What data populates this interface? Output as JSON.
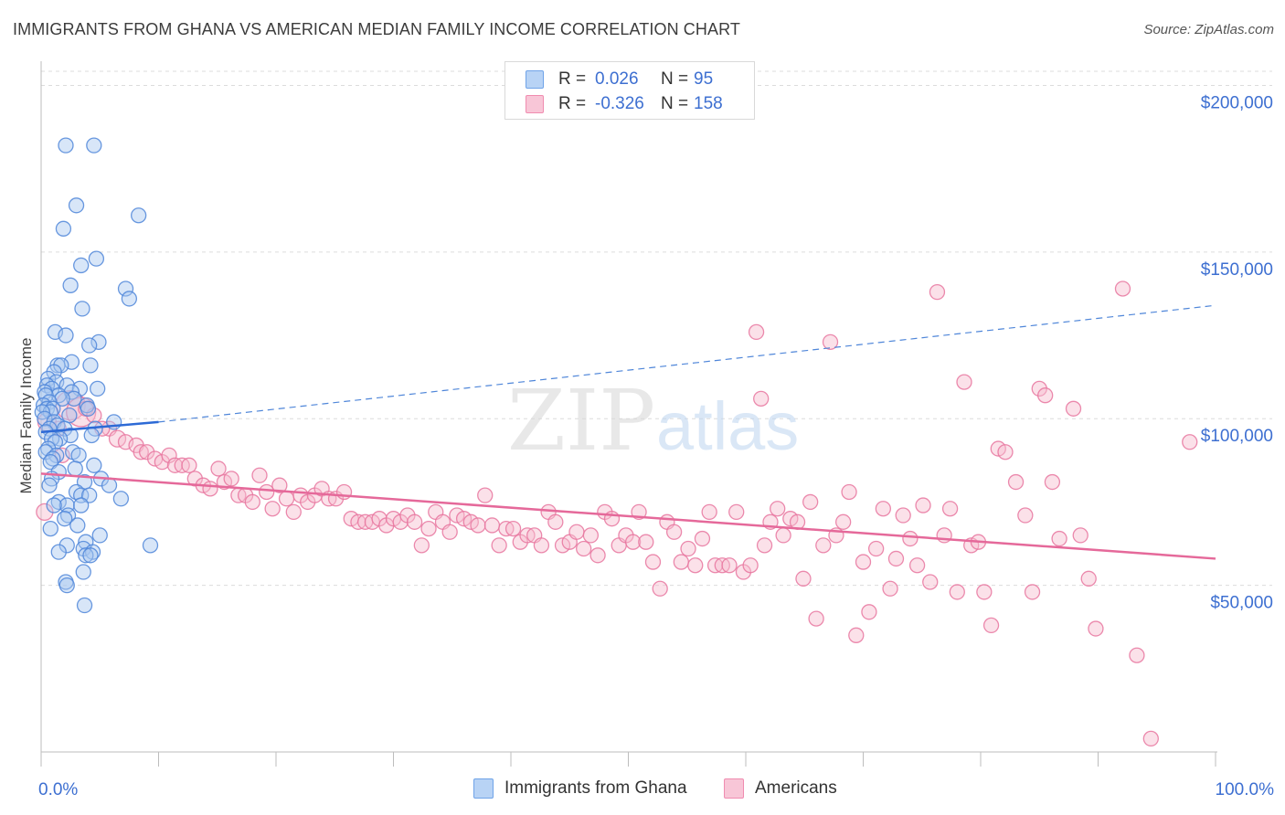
{
  "header": {
    "title": "IMMIGRANTS FROM GHANA VS AMERICAN MEDIAN FAMILY INCOME CORRELATION CHART",
    "source": "Source: ZipAtlas.com"
  },
  "watermark": {
    "part1": "ZIP",
    "part2": "atlas"
  },
  "legend_top": [
    {
      "r_label": "R =",
      "r_value": "0.026",
      "n_label": "N =",
      "n_value": "95",
      "color": "#6fa3e8",
      "fill": "#b8d3f5"
    },
    {
      "r_label": "R =",
      "r_value": "-0.326",
      "n_label": "N =",
      "n_value": "158",
      "color": "#f08cb0",
      "fill": "#f8c6d7"
    }
  ],
  "legend_bottom": [
    {
      "label": "Immigrants from Ghana",
      "color": "#6fa3e8",
      "fill": "#b8d3f5"
    },
    {
      "label": "Americans",
      "color": "#f08cb0",
      "fill": "#f8c6d7"
    }
  ],
  "chart_data": {
    "type": "scatter",
    "title": "IMMIGRANTS FROM GHANA VS AMERICAN MEDIAN FAMILY INCOME CORRELATION CHART",
    "xlabel": "",
    "ylabel": "Median Family Income",
    "xlim": [
      0,
      100
    ],
    "ylim": [
      0,
      210000
    ],
    "x_tick_labels": {
      "left": "0.0%",
      "right": "100.0%"
    },
    "y_ticks": [
      {
        "value": 50000,
        "label": "$50,000"
      },
      {
        "value": 100000,
        "label": "$100,000"
      },
      {
        "value": 150000,
        "label": "$150,000"
      },
      {
        "value": 200000,
        "label": "$200,000"
      }
    ],
    "grid": "horizontal dashed",
    "legend": "top-center and bottom",
    "series": [
      {
        "name": "Immigrants from Ghana",
        "color": "#4f86d9",
        "fill": "#a9c8f0",
        "trend": {
          "x": [
            0,
            10
          ],
          "y": [
            96000,
            99000
          ],
          "dashed_to": [
            100,
            134000
          ]
        },
        "points": [
          [
            2.1,
            182000
          ],
          [
            4.5,
            182000
          ],
          [
            3.0,
            164000
          ],
          [
            8.3,
            161000
          ],
          [
            1.9,
            157000
          ],
          [
            4.7,
            148000
          ],
          [
            3.4,
            146000
          ],
          [
            2.5,
            140000
          ],
          [
            7.2,
            139000
          ],
          [
            7.5,
            136000
          ],
          [
            3.5,
            133000
          ],
          [
            1.2,
            126000
          ],
          [
            2.1,
            125000
          ],
          [
            4.9,
            123000
          ],
          [
            4.1,
            122000
          ],
          [
            2.6,
            117000
          ],
          [
            1.4,
            116000
          ],
          [
            1.7,
            116000
          ],
          [
            4.2,
            116000
          ],
          [
            1.1,
            114000
          ],
          [
            0.6,
            112000
          ],
          [
            1.3,
            111000
          ],
          [
            2.2,
            110000
          ],
          [
            0.5,
            110000
          ],
          [
            3.3,
            109000
          ],
          [
            0.9,
            109000
          ],
          [
            4.8,
            109000
          ],
          [
            2.6,
            108000
          ],
          [
            0.3,
            108000
          ],
          [
            1.5,
            107000
          ],
          [
            0.4,
            107000
          ],
          [
            2.8,
            106000
          ],
          [
            1.8,
            106000
          ],
          [
            0.7,
            105000
          ],
          [
            3.9,
            104000
          ],
          [
            0.2,
            104000
          ],
          [
            0.5,
            103000
          ],
          [
            1.0,
            103000
          ],
          [
            4.0,
            103000
          ],
          [
            0.8,
            102000
          ],
          [
            0.1,
            102000
          ],
          [
            2.4,
            101000
          ],
          [
            0.3,
            100000
          ],
          [
            1.1,
            99000
          ],
          [
            6.2,
            99000
          ],
          [
            1.4,
            98000
          ],
          [
            4.6,
            97000
          ],
          [
            0.7,
            97000
          ],
          [
            2.0,
            97000
          ],
          [
            0.4,
            96000
          ],
          [
            4.3,
            95000
          ],
          [
            2.5,
            95000
          ],
          [
            1.6,
            94000
          ],
          [
            0.9,
            94000
          ],
          [
            1.2,
            93000
          ],
          [
            0.6,
            91000
          ],
          [
            2.7,
            90000
          ],
          [
            0.4,
            90000
          ],
          [
            1.3,
            89000
          ],
          [
            3.2,
            89000
          ],
          [
            1.0,
            88000
          ],
          [
            0.8,
            87000
          ],
          [
            4.5,
            86000
          ],
          [
            2.9,
            85000
          ],
          [
            1.5,
            84000
          ],
          [
            5.1,
            82000
          ],
          [
            0.9,
            82000
          ],
          [
            3.7,
            81000
          ],
          [
            5.8,
            80000
          ],
          [
            0.7,
            80000
          ],
          [
            3.0,
            78000
          ],
          [
            3.4,
            77000
          ],
          [
            4.1,
            77000
          ],
          [
            6.8,
            76000
          ],
          [
            1.5,
            75000
          ],
          [
            2.2,
            74000
          ],
          [
            1.1,
            74000
          ],
          [
            3.4,
            74000
          ],
          [
            2.3,
            71000
          ],
          [
            2.0,
            70000
          ],
          [
            3.1,
            68000
          ],
          [
            0.8,
            67000
          ],
          [
            5.0,
            65000
          ],
          [
            3.8,
            63000
          ],
          [
            2.2,
            62000
          ],
          [
            9.3,
            62000
          ],
          [
            3.6,
            61000
          ],
          [
            4.4,
            60000
          ],
          [
            1.5,
            60000
          ],
          [
            3.8,
            59000
          ],
          [
            4.2,
            59000
          ],
          [
            3.6,
            54000
          ],
          [
            2.1,
            51000
          ],
          [
            2.2,
            50000
          ],
          [
            3.7,
            44000
          ]
        ]
      },
      {
        "name": "Americans",
        "color": "#e8769f",
        "fill": "#f6bccf",
        "trend": {
          "x": [
            0,
            100
          ],
          "y": [
            83500,
            58000
          ]
        },
        "points": [
          [
            2.5,
            104000,
            16
          ],
          [
            3.4,
            102000,
            16
          ],
          [
            0.5,
            99000,
            10
          ],
          [
            1.5,
            97000,
            8
          ],
          [
            0.3,
            72000,
            9
          ],
          [
            1.8,
            89000,
            8
          ],
          [
            3.8,
            103000,
            8
          ],
          [
            4.5,
            101000,
            8
          ],
          [
            5.8,
            97000,
            8
          ],
          [
            5.2,
            97000,
            8
          ],
          [
            6.5,
            94000,
            9
          ],
          [
            7.2,
            93000,
            8
          ],
          [
            8.1,
            92000,
            8
          ],
          [
            8.5,
            90000,
            8
          ],
          [
            9.0,
            90000,
            8
          ],
          [
            9.7,
            88000,
            8
          ],
          [
            10.3,
            87000,
            8
          ],
          [
            10.9,
            89000,
            8
          ],
          [
            11.4,
            86000,
            8
          ],
          [
            12.0,
            86000,
            8
          ],
          [
            12.6,
            86000,
            8
          ],
          [
            13.1,
            82000,
            8
          ],
          [
            13.8,
            80000,
            8
          ],
          [
            14.4,
            79000,
            8
          ],
          [
            15.1,
            85000,
            8
          ],
          [
            15.6,
            81000,
            8
          ],
          [
            16.2,
            82000,
            8
          ],
          [
            16.8,
            77000,
            8
          ],
          [
            17.4,
            77000,
            8
          ],
          [
            18.0,
            75000,
            8
          ],
          [
            18.6,
            83000,
            8
          ],
          [
            19.2,
            78000,
            8
          ],
          [
            19.7,
            73000,
            8
          ],
          [
            20.3,
            80000,
            8
          ],
          [
            20.9,
            76000,
            8
          ],
          [
            21.5,
            72000,
            8
          ],
          [
            22.1,
            77000,
            8
          ],
          [
            22.7,
            75000,
            8
          ],
          [
            23.3,
            77000,
            8
          ],
          [
            23.9,
            79000,
            8
          ],
          [
            24.5,
            76000,
            8
          ],
          [
            25.1,
            76000,
            8
          ],
          [
            25.8,
            78000,
            8
          ],
          [
            26.4,
            70000,
            8
          ],
          [
            27.0,
            69000,
            8
          ],
          [
            27.6,
            69000,
            8
          ],
          [
            28.2,
            69000,
            8
          ],
          [
            28.8,
            70000,
            8
          ],
          [
            29.4,
            68000,
            8
          ],
          [
            30.0,
            70000,
            8
          ],
          [
            30.6,
            69000,
            8
          ],
          [
            31.2,
            71000,
            8
          ],
          [
            31.8,
            69000,
            8
          ],
          [
            32.4,
            62000,
            8
          ],
          [
            33.0,
            67000,
            8
          ],
          [
            33.6,
            72000,
            8
          ],
          [
            34.2,
            69000,
            8
          ],
          [
            34.8,
            66000,
            8
          ],
          [
            35.4,
            71000,
            8
          ],
          [
            36.0,
            70000,
            8
          ],
          [
            36.6,
            69000,
            8
          ],
          [
            37.2,
            68000,
            8
          ],
          [
            37.8,
            77000,
            8
          ],
          [
            38.4,
            68000,
            8
          ],
          [
            39.0,
            62000,
            8
          ],
          [
            39.6,
            67000,
            8
          ],
          [
            40.2,
            67000,
            8
          ],
          [
            40.8,
            63000,
            8
          ],
          [
            41.4,
            65000,
            8
          ],
          [
            42.0,
            65000,
            8
          ],
          [
            42.6,
            62000,
            8
          ],
          [
            43.2,
            72000,
            8
          ],
          [
            43.8,
            69000,
            8
          ],
          [
            44.4,
            62000,
            8
          ],
          [
            45.0,
            63000,
            8
          ],
          [
            45.6,
            66000,
            8
          ],
          [
            46.2,
            61000,
            8
          ],
          [
            46.8,
            65000,
            8
          ],
          [
            47.4,
            59000,
            8
          ],
          [
            48.0,
            72000,
            8
          ],
          [
            48.6,
            70000,
            8
          ],
          [
            49.2,
            62000,
            8
          ],
          [
            49.8,
            65000,
            8
          ],
          [
            50.4,
            63000,
            8
          ],
          [
            50.9,
            72000,
            8
          ],
          [
            51.5,
            63000,
            8
          ],
          [
            52.1,
            57000,
            8
          ],
          [
            52.7,
            49000,
            8
          ],
          [
            53.3,
            69000,
            8
          ],
          [
            53.9,
            66000,
            8
          ],
          [
            54.5,
            57000,
            8
          ],
          [
            55.1,
            61000,
            8
          ],
          [
            55.7,
            56000,
            8
          ],
          [
            56.3,
            64000,
            8
          ],
          [
            56.9,
            72000,
            8
          ],
          [
            57.4,
            56000,
            8
          ],
          [
            58.0,
            56000,
            8
          ],
          [
            58.6,
            56000,
            8
          ],
          [
            59.2,
            72000,
            8
          ],
          [
            59.8,
            54000,
            8
          ],
          [
            60.4,
            56000,
            8
          ],
          [
            60.9,
            126000,
            8
          ],
          [
            61.3,
            106000,
            8
          ],
          [
            61.6,
            62000,
            8
          ],
          [
            62.1,
            69000,
            8
          ],
          [
            62.7,
            73000,
            8
          ],
          [
            63.2,
            65000,
            8
          ],
          [
            63.8,
            70000,
            8
          ],
          [
            64.4,
            69000,
            8
          ],
          [
            64.9,
            52000,
            8
          ],
          [
            65.5,
            75000,
            8
          ],
          [
            66.0,
            40000,
            8
          ],
          [
            66.6,
            62000,
            8
          ],
          [
            67.2,
            123000,
            8
          ],
          [
            67.7,
            65000,
            8
          ],
          [
            68.3,
            69000,
            8
          ],
          [
            68.8,
            78000,
            8
          ],
          [
            69.4,
            35000,
            8
          ],
          [
            70.0,
            57000,
            8
          ],
          [
            70.5,
            42000,
            8
          ],
          [
            71.1,
            61000,
            8
          ],
          [
            71.7,
            73000,
            8
          ],
          [
            72.3,
            49000,
            8
          ],
          [
            72.8,
            58000,
            8
          ],
          [
            73.4,
            71000,
            8
          ],
          [
            74.0,
            64000,
            8
          ],
          [
            74.6,
            56000,
            8
          ],
          [
            75.1,
            74000,
            8
          ],
          [
            75.7,
            51000,
            8
          ],
          [
            76.3,
            138000,
            8
          ],
          [
            76.9,
            65000,
            8
          ],
          [
            77.4,
            73000,
            8
          ],
          [
            78.0,
            48000,
            8
          ],
          [
            78.6,
            111000,
            8
          ],
          [
            79.2,
            62000,
            8
          ],
          [
            79.8,
            63000,
            8
          ],
          [
            80.3,
            48000,
            8
          ],
          [
            80.9,
            38000,
            8
          ],
          [
            81.5,
            91000,
            8
          ],
          [
            82.1,
            90000,
            8
          ],
          [
            83.0,
            81000,
            8
          ],
          [
            83.8,
            71000,
            8
          ],
          [
            84.4,
            48000,
            8
          ],
          [
            85.0,
            109000,
            8
          ],
          [
            85.5,
            107000,
            8
          ],
          [
            86.1,
            81000,
            8
          ],
          [
            86.7,
            64000,
            8
          ],
          [
            87.9,
            103000,
            8
          ],
          [
            88.5,
            65000,
            8
          ],
          [
            89.2,
            52000,
            8
          ],
          [
            89.8,
            37000,
            8
          ],
          [
            92.1,
            139000,
            8
          ],
          [
            93.3,
            29000,
            8
          ],
          [
            94.5,
            4000,
            8
          ],
          [
            97.8,
            93000,
            8
          ]
        ]
      }
    ]
  }
}
